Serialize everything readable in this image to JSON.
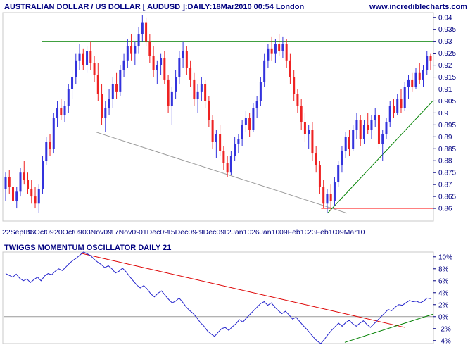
{
  "chart_data": [
    {
      "type": "candlestick",
      "title": "AUSTRALIAN DOLLAR / US DOLLAR [ AUDUSD ]:DAILY:18Mar2010 00:54 London",
      "source": "www.incrediblecharts.com",
      "ylim": [
        0.855,
        0.942
      ],
      "y_ticks": [
        "0.94",
        "0.935",
        "0.93",
        "0.925",
        "0.92",
        "0.915",
        "0.91",
        "0.905",
        "0.9",
        "0.895",
        "0.89",
        "0.885",
        "0.88",
        "0.875",
        "0.87",
        "0.865",
        "0.86"
      ],
      "x_labels": [
        "22Sep09",
        "06Oct09",
        "20Oct09",
        "03Nov09",
        "17Nov09",
        "01Dec09",
        "15Dec09",
        "29Dec09",
        "12Jan10",
        "26Jan10",
        "09Feb10",
        "23Feb10",
        "09Mar10"
      ],
      "colors": {
        "up": "#3333dd",
        "down": "#ee2222",
        "resistance": "#008000",
        "support": "#ff0000",
        "trend": "#999999",
        "minor": "#ccaa00",
        "axis_text": "#000080"
      },
      "ohlc": [
        [
          0.868,
          0.875,
          0.863,
          0.873
        ],
        [
          0.873,
          0.876,
          0.866,
          0.869
        ],
        [
          0.869,
          0.871,
          0.861,
          0.863
        ],
        [
          0.863,
          0.869,
          0.86,
          0.867
        ],
        [
          0.867,
          0.877,
          0.865,
          0.875
        ],
        [
          0.875,
          0.88,
          0.87,
          0.872
        ],
        [
          0.872,
          0.875,
          0.866,
          0.868
        ],
        [
          0.868,
          0.872,
          0.862,
          0.865
        ],
        [
          0.865,
          0.869,
          0.86,
          0.862
        ],
        [
          0.862,
          0.87,
          0.858,
          0.868
        ],
        [
          0.868,
          0.882,
          0.866,
          0.88
        ],
        [
          0.88,
          0.89,
          0.878,
          0.888
        ],
        [
          0.888,
          0.891,
          0.882,
          0.885
        ],
        [
          0.885,
          0.9,
          0.883,
          0.898
        ],
        [
          0.898,
          0.905,
          0.894,
          0.902
        ],
        [
          0.902,
          0.906,
          0.897,
          0.899
        ],
        [
          0.899,
          0.905,
          0.896,
          0.903
        ],
        [
          0.903,
          0.912,
          0.9,
          0.91
        ],
        [
          0.91,
          0.918,
          0.906,
          0.915
        ],
        [
          0.915,
          0.925,
          0.912,
          0.922
        ],
        [
          0.922,
          0.929,
          0.918,
          0.925
        ],
        [
          0.925,
          0.927,
          0.918,
          0.92
        ],
        [
          0.92,
          0.928,
          0.917,
          0.926
        ],
        [
          0.926,
          0.93,
          0.918,
          0.921
        ],
        [
          0.921,
          0.924,
          0.913,
          0.916
        ],
        [
          0.916,
          0.921,
          0.905,
          0.908
        ],
        [
          0.908,
          0.912,
          0.895,
          0.898
        ],
        [
          0.898,
          0.905,
          0.892,
          0.902
        ],
        [
          0.902,
          0.91,
          0.899,
          0.906
        ],
        [
          0.906,
          0.915,
          0.902,
          0.912
        ],
        [
          0.912,
          0.917,
          0.906,
          0.909
        ],
        [
          0.909,
          0.92,
          0.907,
          0.918
        ],
        [
          0.918,
          0.925,
          0.915,
          0.922
        ],
        [
          0.922,
          0.931,
          0.919,
          0.928
        ],
        [
          0.928,
          0.933,
          0.922,
          0.925
        ],
        [
          0.925,
          0.93,
          0.92,
          0.928
        ],
        [
          0.928,
          0.936,
          0.925,
          0.933
        ],
        [
          0.933,
          0.941,
          0.93,
          0.938
        ],
        [
          0.938,
          0.94,
          0.928,
          0.93
        ],
        [
          0.93,
          0.933,
          0.921,
          0.924
        ],
        [
          0.924,
          0.928,
          0.915,
          0.918
        ],
        [
          0.918,
          0.922,
          0.912,
          0.92
        ],
        [
          0.92,
          0.925,
          0.916,
          0.923
        ],
        [
          0.923,
          0.926,
          0.912,
          0.914
        ],
        [
          0.914,
          0.916,
          0.9,
          0.903
        ],
        [
          0.903,
          0.911,
          0.895,
          0.909
        ],
        [
          0.909,
          0.918,
          0.906,
          0.915
        ],
        [
          0.915,
          0.926,
          0.912,
          0.923
        ],
        [
          0.923,
          0.93,
          0.919,
          0.926
        ],
        [
          0.926,
          0.928,
          0.916,
          0.919
        ],
        [
          0.919,
          0.922,
          0.911,
          0.914
        ],
        [
          0.914,
          0.917,
          0.903,
          0.906
        ],
        [
          0.906,
          0.912,
          0.9,
          0.909
        ],
        [
          0.909,
          0.915,
          0.905,
          0.912
        ],
        [
          0.912,
          0.914,
          0.902,
          0.905
        ],
        [
          0.905,
          0.907,
          0.894,
          0.897
        ],
        [
          0.897,
          0.899,
          0.885,
          0.888
        ],
        [
          0.888,
          0.893,
          0.881,
          0.891
        ],
        [
          0.891,
          0.895,
          0.882,
          0.884
        ],
        [
          0.884,
          0.886,
          0.876,
          0.879
        ],
        [
          0.879,
          0.882,
          0.873,
          0.875
        ],
        [
          0.875,
          0.884,
          0.874,
          0.882
        ],
        [
          0.882,
          0.89,
          0.88,
          0.887
        ],
        [
          0.887,
          0.891,
          0.883,
          0.889
        ],
        [
          0.889,
          0.897,
          0.886,
          0.895
        ],
        [
          0.895,
          0.901,
          0.892,
          0.898
        ],
        [
          0.898,
          0.9,
          0.89,
          0.893
        ],
        [
          0.893,
          0.904,
          0.892,
          0.902
        ],
        [
          0.902,
          0.907,
          0.898,
          0.905
        ],
        [
          0.905,
          0.915,
          0.903,
          0.913
        ],
        [
          0.913,
          0.925,
          0.911,
          0.922
        ],
        [
          0.922,
          0.929,
          0.919,
          0.927
        ],
        [
          0.927,
          0.932,
          0.922,
          0.925
        ],
        [
          0.925,
          0.931,
          0.921,
          0.929
        ],
        [
          0.929,
          0.933,
          0.924,
          0.926
        ],
        [
          0.926,
          0.932,
          0.923,
          0.929
        ],
        [
          0.929,
          0.931,
          0.919,
          0.922
        ],
        [
          0.922,
          0.925,
          0.912,
          0.915
        ],
        [
          0.915,
          0.918,
          0.905,
          0.908
        ],
        [
          0.908,
          0.91,
          0.9,
          0.903
        ],
        [
          0.903,
          0.906,
          0.893,
          0.896
        ],
        [
          0.896,
          0.9,
          0.888,
          0.891
        ],
        [
          0.891,
          0.895,
          0.885,
          0.893
        ],
        [
          0.893,
          0.896,
          0.88,
          0.883
        ],
        [
          0.883,
          0.886,
          0.875,
          0.878
        ],
        [
          0.878,
          0.88,
          0.866,
          0.869
        ],
        [
          0.869,
          0.872,
          0.86,
          0.862
        ],
        [
          0.862,
          0.868,
          0.858,
          0.866
        ],
        [
          0.866,
          0.87,
          0.859,
          0.863
        ],
        [
          0.863,
          0.873,
          0.861,
          0.871
        ],
        [
          0.871,
          0.88,
          0.869,
          0.878
        ],
        [
          0.878,
          0.886,
          0.875,
          0.884
        ],
        [
          0.884,
          0.892,
          0.881,
          0.89
        ],
        [
          0.89,
          0.893,
          0.882,
          0.885
        ],
        [
          0.885,
          0.895,
          0.884,
          0.893
        ],
        [
          0.893,
          0.9,
          0.889,
          0.897
        ],
        [
          0.897,
          0.899,
          0.886,
          0.889
        ],
        [
          0.889,
          0.897,
          0.887,
          0.895
        ],
        [
          0.895,
          0.9,
          0.891,
          0.893
        ],
        [
          0.893,
          0.899,
          0.889,
          0.897
        ],
        [
          0.897,
          0.902,
          0.894,
          0.899
        ],
        [
          0.899,
          0.9,
          0.885,
          0.887
        ],
        [
          0.887,
          0.893,
          0.88,
          0.891
        ],
        [
          0.891,
          0.898,
          0.889,
          0.896
        ],
        [
          0.896,
          0.905,
          0.894,
          0.903
        ],
        [
          0.903,
          0.906,
          0.898,
          0.9
        ],
        [
          0.9,
          0.908,
          0.899,
          0.906
        ],
        [
          0.906,
          0.91,
          0.9,
          0.902
        ],
        [
          0.902,
          0.913,
          0.901,
          0.911
        ],
        [
          0.911,
          0.916,
          0.906,
          0.914
        ],
        [
          0.914,
          0.917,
          0.909,
          0.911
        ],
        [
          0.911,
          0.919,
          0.91,
          0.917
        ],
        [
          0.917,
          0.921,
          0.912,
          0.914
        ],
        [
          0.914,
          0.92,
          0.911,
          0.918
        ],
        [
          0.918,
          0.926,
          0.916,
          0.924
        ],
        [
          0.924,
          0.925,
          0.918,
          0.922
        ]
      ],
      "lines": [
        {
          "name": "resistance",
          "x": [
            0.09,
            1.0
          ],
          "y": [
            0.93,
            0.93
          ]
        },
        {
          "name": "support",
          "x": [
            0.74,
            1.0
          ],
          "y": [
            0.86,
            0.86
          ]
        },
        {
          "name": "long-downtrend",
          "x": [
            0.215,
            0.8
          ],
          "y": [
            0.892,
            0.858
          ]
        },
        {
          "name": "uptrend",
          "x": [
            0.755,
            1.0
          ],
          "y": [
            0.858,
            0.905
          ]
        },
        {
          "name": "minor-resistance",
          "x": [
            0.905,
            1.0
          ],
          "y": [
            0.91,
            0.91
          ]
        }
      ]
    },
    {
      "type": "line",
      "title": "TWIGGS MOMENTUM OSCILLATOR DAILY 21",
      "ylim": [
        -4.5,
        10.8
      ],
      "y_ticks": [
        "10%",
        "8%",
        "6%",
        "4%",
        "2%",
        "0%",
        "-2%",
        "-4%"
      ],
      "y_tick_values": [
        10,
        8,
        6,
        4,
        2,
        0,
        -2,
        -4
      ],
      "series": [
        {
          "values": [
            7.2,
            6.9,
            6.6,
            7.1,
            6.4,
            6.0,
            6.3,
            5.7,
            6.2,
            6.6,
            6.0,
            6.8,
            7.2,
            7.0,
            7.6,
            8.0,
            7.7,
            8.3,
            8.9,
            9.4,
            9.8,
            10.3,
            10.8,
            10.5,
            10.2,
            9.6,
            9.1,
            8.7,
            8.2,
            8.5,
            8.0,
            7.3,
            7.6,
            8.1,
            7.5,
            6.7,
            6.0,
            5.3,
            4.8,
            5.2,
            4.6,
            3.8,
            3.3,
            3.9,
            4.3,
            3.6,
            2.9,
            2.3,
            2.6,
            3.1,
            2.4,
            1.6,
            1.0,
            0.5,
            -0.2,
            -1.0,
            -1.6,
            -2.4,
            -2.9,
            -3.3,
            -2.6,
            -2.0,
            -1.8,
            -2.3,
            -1.7,
            -1.2,
            -0.5,
            -0.9,
            -0.2,
            0.4,
            1.0,
            1.6,
            2.2,
            2.5,
            1.9,
            2.3,
            1.6,
            1.0,
            0.5,
            0.9,
            0.3,
            -0.4,
            -0.1,
            -0.8,
            -1.5,
            -2.1,
            -2.8,
            -3.5,
            -4.1,
            -4.5,
            -3.8,
            -3.0,
            -2.3,
            -1.7,
            -1.1,
            -1.6,
            -1.0,
            -0.6,
            -1.2,
            -1.6,
            -1.1,
            -0.7,
            -1.3,
            -1.8,
            -1.2,
            -0.6,
            0.0,
            0.6,
            1.2,
            1.0,
            1.6,
            2.0,
            1.9,
            2.3,
            2.7,
            2.5,
            2.6,
            2.3,
            2.6,
            3.1,
            3.0
          ]
        }
      ],
      "lines": [
        {
          "name": "oscillator-downtrend",
          "x": [
            0.18,
            0.935
          ],
          "y": [
            10.6,
            -1.8
          ]
        },
        {
          "name": "oscillator-uptrend",
          "x": [
            0.795,
            1.0
          ],
          "y": [
            -4.3,
            0.4
          ]
        }
      ]
    }
  ]
}
